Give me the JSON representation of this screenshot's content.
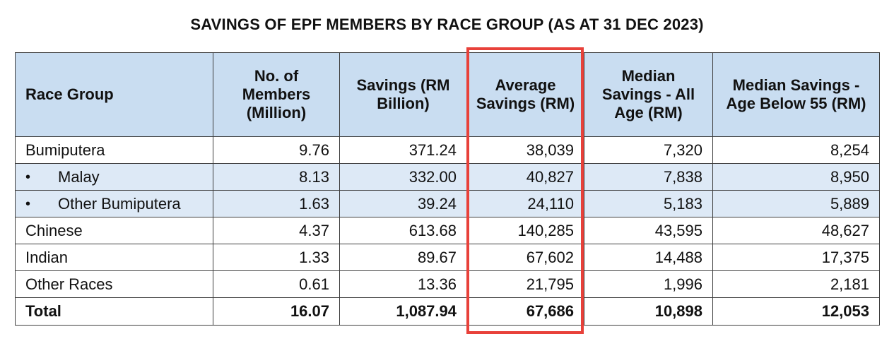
{
  "title": "SAVINGS OF EPF MEMBERS BY RACE GROUP (AS AT 31 DEC 2023)",
  "headers": {
    "race": "Race Group",
    "members": "No. of Members (Million)",
    "savings": "Savings (RM Billion)",
    "average": "Average Savings (RM)",
    "median_all": "Median Savings - All Age (RM)",
    "median_55": "Median Savings - Age Below 55 (RM)"
  },
  "bullet": "•",
  "rows": [
    {
      "label": "Bumiputera",
      "members": "9.76",
      "savings": "371.24",
      "average": "38,039",
      "median_all": "7,320",
      "median_55": "8,254"
    },
    {
      "label": "Malay",
      "members": "8.13",
      "savings": "332.00",
      "average": "40,827",
      "median_all": "7,838",
      "median_55": "8,950"
    },
    {
      "label": "Other Bumiputera",
      "members": "1.63",
      "savings": "39.24",
      "average": "24,110",
      "median_all": "5,183",
      "median_55": "5,889"
    },
    {
      "label": "Chinese",
      "members": "4.37",
      "savings": "613.68",
      "average": "140,285",
      "median_all": "43,595",
      "median_55": "48,627"
    },
    {
      "label": "Indian",
      "members": "1.33",
      "savings": "89.67",
      "average": "67,602",
      "median_all": "14,488",
      "median_55": "17,375"
    },
    {
      "label": "Other Races",
      "members": "0.61",
      "savings": "13.36",
      "average": "21,795",
      "median_all": "1,996",
      "median_55": "2,181"
    }
  ],
  "total": {
    "label": "Total",
    "members": "16.07",
    "savings": "1,087.94",
    "average": "67,686",
    "median_all": "10,898",
    "median_55": "12,053"
  },
  "colors": {
    "header_bg": "#c9ddf1",
    "shaded_row_bg": "#dde9f6",
    "highlight_border": "#e8413a"
  }
}
